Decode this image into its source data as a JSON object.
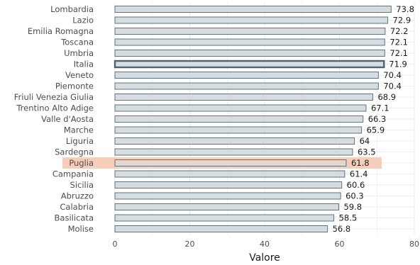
{
  "chart_data": {
    "type": "bar",
    "orientation": "horizontal",
    "categories": [
      "Lombardia",
      "Lazio",
      "Emilia Romagna",
      "Toscana",
      "Umbria",
      "Italia",
      "Veneto",
      "Piemonte",
      "Friuli Venezia Giulia",
      "Trentino Alto Adige",
      "Valle d'Aosta",
      "Marche",
      "Liguria",
      "Sardegna",
      "Puglia",
      "Campania",
      "Sicilia",
      "Abruzzo",
      "Calabria",
      "Basilicata",
      "Molise"
    ],
    "values": [
      73.8,
      72.9,
      72.2,
      72.1,
      72.1,
      71.9,
      70.4,
      70.4,
      68.9,
      67.1,
      66.3,
      65.9,
      64,
      63.5,
      61.8,
      61.4,
      60.6,
      60.3,
      59.8,
      58.5,
      56.8
    ],
    "value_labels": [
      "73.8",
      "72.9",
      "72.2",
      "72.1",
      "72.1",
      "71.9",
      "70.4",
      "70.4",
      "68.9",
      "67.1",
      "66.3",
      "65.9",
      "64",
      "63.5",
      "61.8",
      "61.4",
      "60.6",
      "60.3",
      "59.8",
      "58.5",
      "56.8"
    ],
    "xlabel": "Valore",
    "xlim": [
      0,
      80
    ],
    "xticks": [
      0,
      20,
      40,
      60,
      80
    ],
    "grid": true,
    "highlight": {
      "outlined": "Italia",
      "shaded": "Puglia"
    },
    "colors": {
      "bar_fill": "#d6dde0",
      "bar_stroke": "#5f7480",
      "italia_stroke": "#4f6472",
      "puglia_band": "#f4c6ad",
      "grid": "#e8e8e8"
    }
  }
}
